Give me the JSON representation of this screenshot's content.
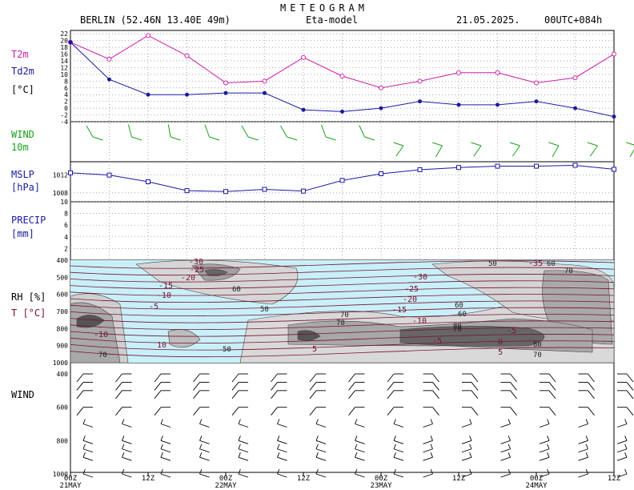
{
  "header": {
    "title": "METEOGRAM",
    "location": "BERLIN (52.46N 13.40E  49m)",
    "model": "Eta-model",
    "date": "21.05.2025.",
    "run": "00UTC+084h"
  },
  "colors": {
    "t2m": "#cc1fa8",
    "td2m": "#1a1aa0",
    "wind": "#1aa01a",
    "mslp": "#1a1aa0",
    "temp_contour": "#7a1030",
    "rh_contour": "#333333",
    "sky": "#c8f0f8"
  },
  "labels": {
    "t2m": "T2m",
    "td2m": "Td2m",
    "degc": "[°C]",
    "wind": "WIND",
    "wind2": "10m",
    "mslp": "MSLP",
    "hpa": "[hPa]",
    "precip": "PRECIP",
    "mm": "[mm]",
    "rh": "RH [%]",
    "t": "T [°C]",
    "windp": "WIND"
  },
  "chart_data": [
    {
      "type": "line",
      "panel": "temperature",
      "x_hours": [
        0,
        6,
        12,
        18,
        24,
        30,
        36,
        42,
        48,
        54,
        60,
        66,
        72,
        78,
        84
      ],
      "series": [
        {
          "name": "T2m",
          "values": [
            19.5,
            14.5,
            21.5,
            15.5,
            7.5,
            8,
            15,
            9.5,
            6,
            8,
            10.5,
            10.5,
            7.5,
            9,
            16
          ]
        },
        {
          "name": "Td2m",
          "values": [
            19.5,
            8.5,
            4,
            4,
            4.5,
            4.5,
            -0.5,
            -1,
            0,
            2,
            1,
            1,
            2,
            0,
            -2.5
          ]
        }
      ],
      "y_ticks": [
        "22",
        "20",
        "18",
        "16",
        "14",
        "12",
        "10",
        "8",
        "6",
        "4",
        "2",
        "0",
        "-2",
        "-4"
      ],
      "ylim": [
        -4,
        23
      ]
    },
    {
      "type": "scatter",
      "panel": "wind-10m",
      "x_hours": [
        0,
        6,
        12,
        18,
        24,
        30,
        36,
        42,
        48,
        54,
        60,
        66,
        72,
        78,
        84
      ],
      "direction_deg": [
        330,
        345,
        350,
        340,
        330,
        330,
        340,
        335,
        215,
        210,
        215,
        215,
        210,
        215,
        210
      ],
      "speed_kt": [
        10,
        10,
        10,
        10,
        10,
        10,
        10,
        10,
        10,
        10,
        10,
        10,
        10,
        10,
        10
      ]
    },
    {
      "type": "line",
      "panel": "mslp",
      "x_hours": [
        0,
        6,
        12,
        18,
        24,
        30,
        36,
        42,
        48,
        54,
        60,
        66,
        72,
        78,
        84
      ],
      "series": [
        {
          "name": "MSLP",
          "values": [
            1012.5,
            1012,
            1010.5,
            1008.5,
            1008.3,
            1008.8,
            1008.4,
            1010.8,
            1012.3,
            1013.2,
            1013.7,
            1014,
            1014,
            1014.2,
            1013.3
          ]
        }
      ],
      "y_ticks": [
        "1012",
        "1008"
      ],
      "ylim": [
        1006,
        1015
      ]
    },
    {
      "type": "bar",
      "panel": "precipitation",
      "x_hours": [
        0,
        6,
        12,
        18,
        24,
        30,
        36,
        42,
        48,
        54,
        60,
        66,
        72,
        78,
        84
      ],
      "values": [
        0,
        0,
        0,
        0,
        0,
        0,
        0,
        0,
        0,
        0,
        0,
        0,
        0,
        0,
        0
      ],
      "y_ticks": [
        "10",
        "8",
        "6",
        "4",
        "2"
      ],
      "ylim": [
        0,
        10
      ]
    },
    {
      "type": "heatmap",
      "panel": "rh-temperature-profile",
      "y_ticks": [
        "400",
        "500",
        "600",
        "700",
        "800",
        "900",
        "1000"
      ],
      "ylim": [
        1000,
        400
      ],
      "temp_labels": [
        "-30",
        "-25",
        "-20",
        "-15",
        "-10",
        "-5",
        "-10",
        "-5",
        "10",
        "5",
        "-30",
        "-25",
        "-20",
        "-15",
        "-10",
        "-5",
        "0",
        "5",
        "-35",
        "-35"
      ],
      "rh_labels": [
        "60",
        "50",
        "70",
        "50",
        "60",
        "70",
        "60",
        "70",
        "80",
        "50",
        "60",
        "70",
        "80",
        "70",
        "70"
      ]
    },
    {
      "type": "scatter",
      "panel": "wind-profile",
      "y_ticks": [
        "400",
        "600",
        "800",
        "1000"
      ],
      "levels_hpa": [
        400,
        450,
        500,
        600,
        700,
        800,
        850,
        900,
        1000
      ]
    }
  ],
  "x_axis": {
    "times": [
      "00Z",
      "12Z",
      "00Z",
      "12Z",
      "00Z",
      "12Z",
      "00Z",
      "12Z"
    ],
    "dates": [
      "21MAY",
      "22MAY",
      "23MAY",
      "24MAY"
    ]
  }
}
